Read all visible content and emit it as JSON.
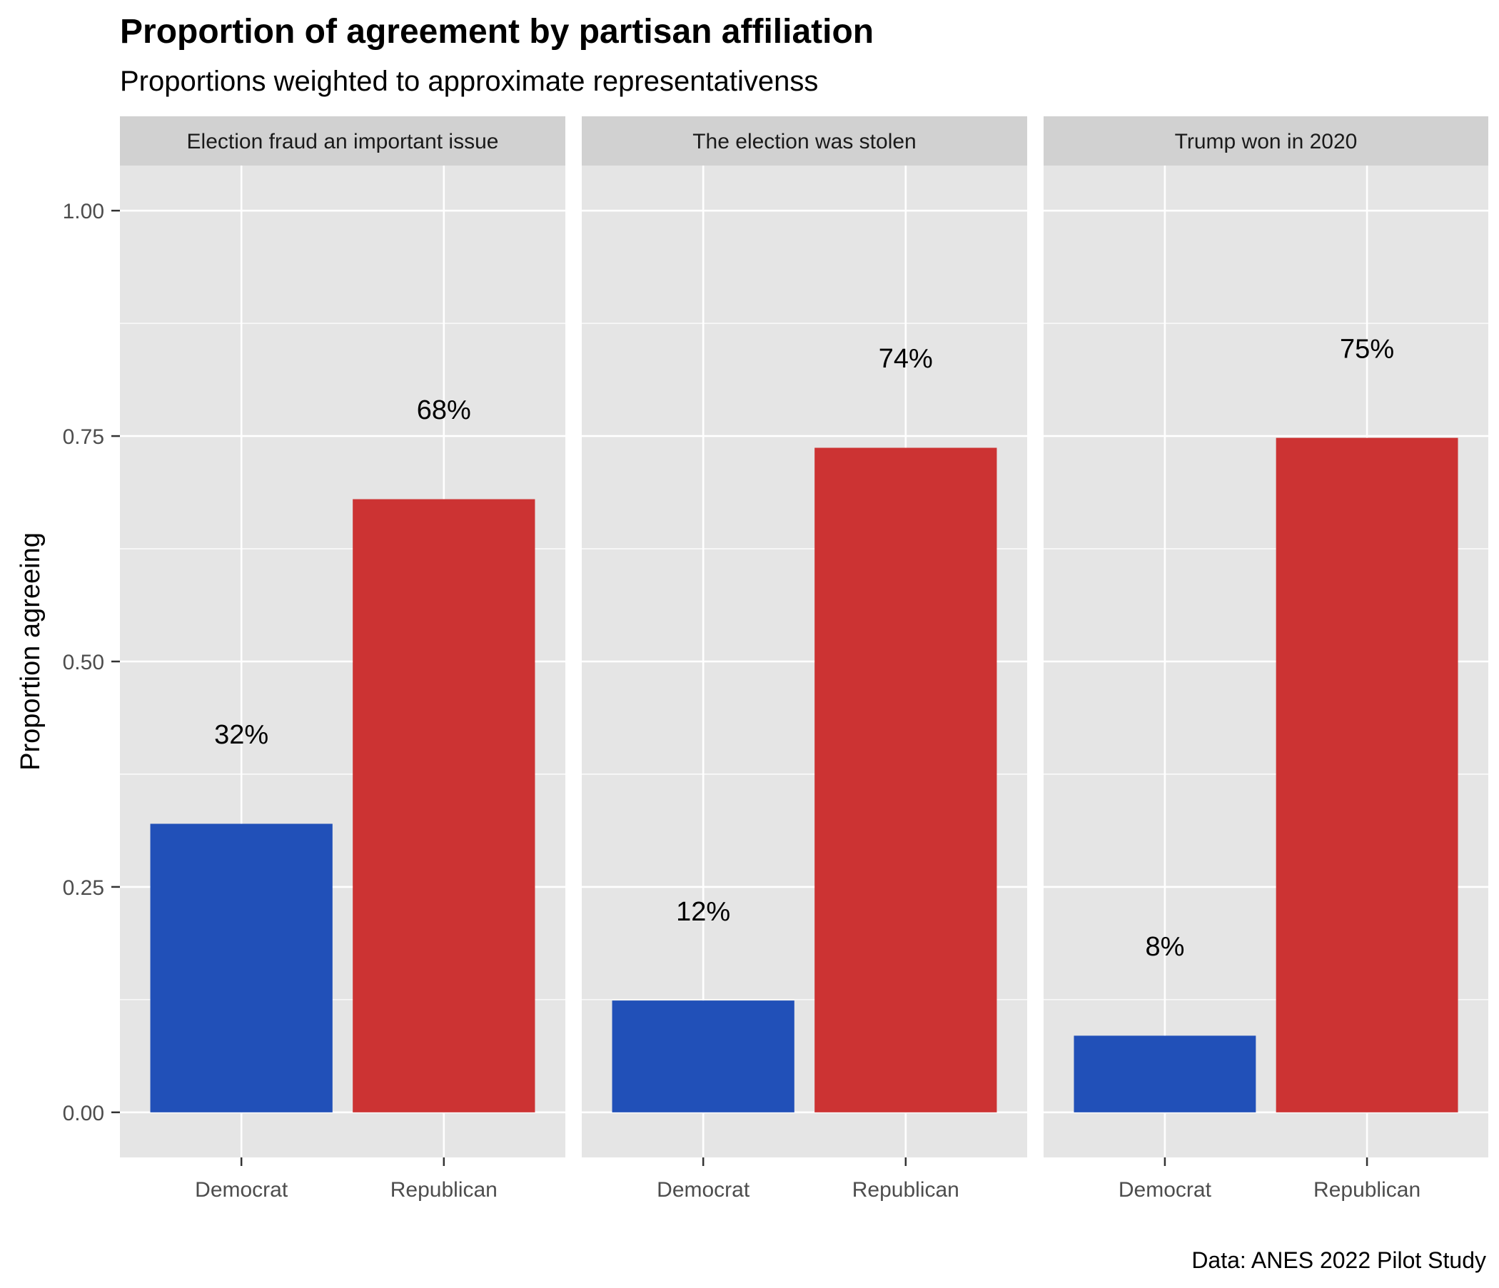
{
  "chart_data": {
    "type": "bar",
    "title": "Proportion of agreement by partisan affiliation",
    "subtitle": "Proportions weighted to approximate representativenss",
    "ylabel": "Proportion agreeing",
    "xlabel": "",
    "caption": "Data: ANES 2022 Pilot Study",
    "ylim": [
      -0.05,
      1.05
    ],
    "yticks": [
      0,
      0.25,
      0.5,
      0.75,
      1.0
    ],
    "ytick_labels": [
      "0.00",
      "0.25",
      "0.50",
      "0.75",
      "1.00"
    ],
    "categories": [
      "Democrat",
      "Republican"
    ],
    "colors": {
      "Democrat": "#2150B8",
      "Republican": "#CC3333"
    },
    "panel_background": "#E5E5E5",
    "strip_background": "#D1D1D1",
    "grid": true,
    "legend": "none",
    "facets": [
      {
        "label": "Election fraud an important issue",
        "values": [
          0.32,
          0.68
        ],
        "value_labels": [
          "32%",
          "68%"
        ]
      },
      {
        "label": "The election was stolen",
        "values": [
          0.124,
          0.737
        ],
        "value_labels": [
          "12%",
          "74%"
        ]
      },
      {
        "label": "Trump won in 2020",
        "values": [
          0.085,
          0.748
        ],
        "value_labels": [
          "8%",
          "75%"
        ]
      }
    ]
  }
}
